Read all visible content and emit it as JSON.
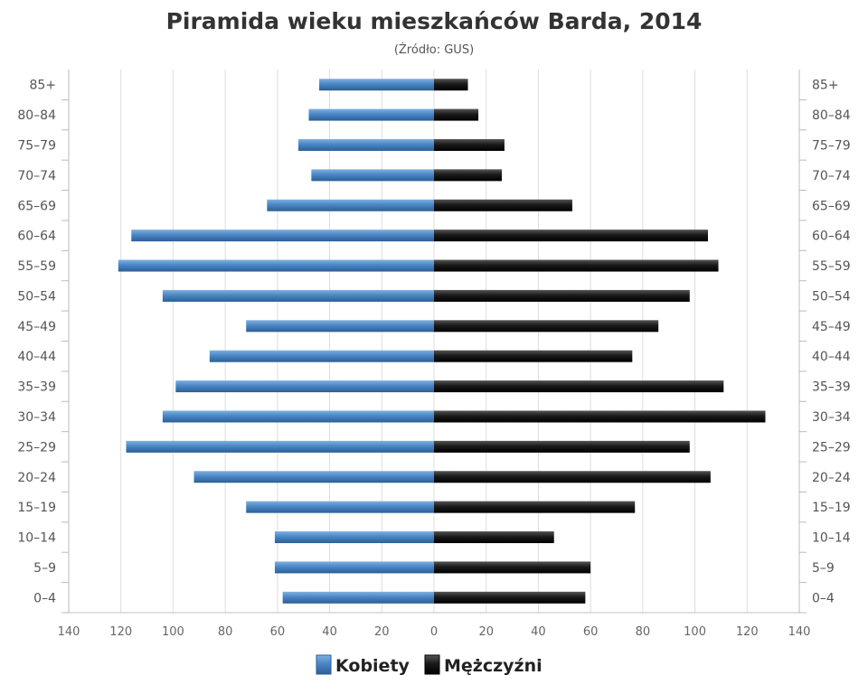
{
  "chart_data": {
    "type": "bar",
    "orientation": "horizontal-diverging",
    "title": "Piramida wieku mieszkańców Barda, 2014",
    "subtitle": "(Źródło: GUS)",
    "categories": [
      "0–4",
      "5–9",
      "10–14",
      "15–19",
      "20–24",
      "25–29",
      "30–34",
      "35–39",
      "40–44",
      "45–49",
      "50–54",
      "55–59",
      "60–64",
      "65–69",
      "70–74",
      "75–79",
      "80–84",
      "85+"
    ],
    "series": [
      {
        "name": "Kobiety",
        "color": "#4a86c5",
        "values": [
          58,
          61,
          61,
          72,
          92,
          118,
          104,
          99,
          86,
          72,
          104,
          121,
          116,
          64,
          47,
          52,
          48,
          44
        ]
      },
      {
        "name": "Mężczyźni",
        "color": "#1a1a1a",
        "values": [
          58,
          60,
          46,
          77,
          106,
          98,
          127,
          111,
          76,
          86,
          98,
          109,
          105,
          53,
          26,
          27,
          17,
          13
        ]
      }
    ],
    "xlim": [
      -140,
      140
    ],
    "ticks": [
      140,
      120,
      100,
      80,
      60,
      40,
      20,
      0,
      20,
      40,
      60,
      80,
      100,
      120,
      140
    ],
    "grid": true,
    "legend": "bottom-center"
  }
}
